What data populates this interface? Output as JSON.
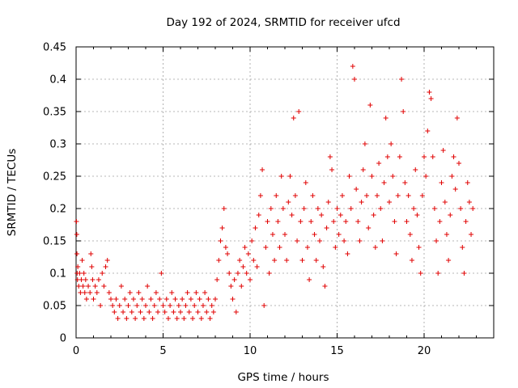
{
  "chart_data": {
    "type": "scatter",
    "title": "Day 192 of 2024, SRMTID for receiver ufcd",
    "xlabel": "GPS time / hours",
    "ylabel": "SRMTID / TECUs",
    "xlim": [
      0,
      24
    ],
    "ylim": [
      0,
      0.45
    ],
    "xticks": [
      0,
      5,
      10,
      15,
      20
    ],
    "yticks": [
      0,
      0.05,
      0.1,
      0.15,
      0.2,
      0.25,
      0.3,
      0.35,
      0.4,
      0.45
    ],
    "grid": true,
    "marker": "+",
    "color": "#e00000",
    "series": [
      {
        "points": [
          [
            0.02,
            0.18
          ],
          [
            0.04,
            0.16
          ],
          [
            0.05,
            0.13
          ],
          [
            0.06,
            0.1
          ],
          [
            0.08,
            0.09
          ],
          [
            0.1,
            0.11
          ],
          [
            0.15,
            0.08
          ],
          [
            0.2,
            0.1
          ],
          [
            0.25,
            0.07
          ],
          [
            0.3,
            0.09
          ],
          [
            0.35,
            0.12
          ],
          [
            0.4,
            0.08
          ],
          [
            0.45,
            0.1
          ],
          [
            0.5,
            0.07
          ],
          [
            0.55,
            0.09
          ],
          [
            0.6,
            0.06
          ],
          [
            0.7,
            0.08
          ],
          [
            0.8,
            0.07
          ],
          [
            0.85,
            0.13
          ],
          [
            0.9,
            0.11
          ],
          [
            0.95,
            0.09
          ],
          [
            1.0,
            0.06
          ],
          [
            1.1,
            0.08
          ],
          [
            1.2,
            0.07
          ],
          [
            1.3,
            0.09
          ],
          [
            1.4,
            0.05
          ],
          [
            1.5,
            0.1
          ],
          [
            1.6,
            0.08
          ],
          [
            1.7,
            0.11
          ],
          [
            1.8,
            0.12
          ],
          [
            1.9,
            0.07
          ],
          [
            2.0,
            0.06
          ],
          [
            2.1,
            0.05
          ],
          [
            2.2,
            0.04
          ],
          [
            2.3,
            0.06
          ],
          [
            2.4,
            0.03
          ],
          [
            2.5,
            0.05
          ],
          [
            2.6,
            0.08
          ],
          [
            2.7,
            0.04
          ],
          [
            2.8,
            0.06
          ],
          [
            2.9,
            0.03
          ],
          [
            3.0,
            0.05
          ],
          [
            3.1,
            0.07
          ],
          [
            3.2,
            0.04
          ],
          [
            3.3,
            0.06
          ],
          [
            3.4,
            0.03
          ],
          [
            3.5,
            0.05
          ],
          [
            3.6,
            0.07
          ],
          [
            3.7,
            0.04
          ],
          [
            3.8,
            0.06
          ],
          [
            3.9,
            0.03
          ],
          [
            4.0,
            0.05
          ],
          [
            4.1,
            0.08
          ],
          [
            4.2,
            0.04
          ],
          [
            4.3,
            0.06
          ],
          [
            4.4,
            0.03
          ],
          [
            4.5,
            0.05
          ],
          [
            4.6,
            0.07
          ],
          [
            4.7,
            0.04
          ],
          [
            4.8,
            0.06
          ],
          [
            4.9,
            0.1
          ],
          [
            5.0,
            0.05
          ],
          [
            5.1,
            0.04
          ],
          [
            5.2,
            0.06
          ],
          [
            5.3,
            0.03
          ],
          [
            5.4,
            0.05
          ],
          [
            5.5,
            0.07
          ],
          [
            5.6,
            0.04
          ],
          [
            5.7,
            0.06
          ],
          [
            5.8,
            0.03
          ],
          [
            5.9,
            0.05
          ],
          [
            6.0,
            0.04
          ],
          [
            6.1,
            0.06
          ],
          [
            6.2,
            0.03
          ],
          [
            6.3,
            0.05
          ],
          [
            6.4,
            0.07
          ],
          [
            6.5,
            0.04
          ],
          [
            6.6,
            0.06
          ],
          [
            6.7,
            0.03
          ],
          [
            6.8,
            0.05
          ],
          [
            6.9,
            0.07
          ],
          [
            7.0,
            0.04
          ],
          [
            7.1,
            0.06
          ],
          [
            7.2,
            0.03
          ],
          [
            7.3,
            0.05
          ],
          [
            7.4,
            0.07
          ],
          [
            7.5,
            0.04
          ],
          [
            7.6,
            0.06
          ],
          [
            7.7,
            0.03
          ],
          [
            7.8,
            0.05
          ],
          [
            7.9,
            0.04
          ],
          [
            8.0,
            0.06
          ],
          [
            8.1,
            0.09
          ],
          [
            8.2,
            0.12
          ],
          [
            8.3,
            0.15
          ],
          [
            8.4,
            0.17
          ],
          [
            8.5,
            0.2
          ],
          [
            8.6,
            0.14
          ],
          [
            8.7,
            0.13
          ],
          [
            8.8,
            0.1
          ],
          [
            8.9,
            0.08
          ],
          [
            9.0,
            0.06
          ],
          [
            9.1,
            0.09
          ],
          [
            9.2,
            0.04
          ],
          [
            9.3,
            0.1
          ],
          [
            9.4,
            0.12
          ],
          [
            9.5,
            0.08
          ],
          [
            9.6,
            0.11
          ],
          [
            9.7,
            0.14
          ],
          [
            9.8,
            0.1
          ],
          [
            9.9,
            0.13
          ],
          [
            10.0,
            0.09
          ],
          [
            10.1,
            0.15
          ],
          [
            10.2,
            0.12
          ],
          [
            10.3,
            0.17
          ],
          [
            10.4,
            0.11
          ],
          [
            10.5,
            0.19
          ],
          [
            10.6,
            0.22
          ],
          [
            10.7,
            0.26
          ],
          [
            10.8,
            0.05
          ],
          [
            10.9,
            0.14
          ],
          [
            11.0,
            0.18
          ],
          [
            11.1,
            0.1
          ],
          [
            11.2,
            0.2
          ],
          [
            11.3,
            0.16
          ],
          [
            11.4,
            0.12
          ],
          [
            11.5,
            0.22
          ],
          [
            11.6,
            0.18
          ],
          [
            11.7,
            0.14
          ],
          [
            11.8,
            0.25
          ],
          [
            11.9,
            0.2
          ],
          [
            12.0,
            0.16
          ],
          [
            12.1,
            0.12
          ],
          [
            12.2,
            0.21
          ],
          [
            12.3,
            0.25
          ],
          [
            12.4,
            0.19
          ],
          [
            12.5,
            0.34
          ],
          [
            12.6,
            0.22
          ],
          [
            12.7,
            0.15
          ],
          [
            12.8,
            0.35
          ],
          [
            12.9,
            0.18
          ],
          [
            13.0,
            0.12
          ],
          [
            13.1,
            0.2
          ],
          [
            13.2,
            0.24
          ],
          [
            13.3,
            0.14
          ],
          [
            13.4,
            0.09
          ],
          [
            13.5,
            0.18
          ],
          [
            13.6,
            0.22
          ],
          [
            13.7,
            0.16
          ],
          [
            13.8,
            0.12
          ],
          [
            13.9,
            0.2
          ],
          [
            14.0,
            0.15
          ],
          [
            14.1,
            0.19
          ],
          [
            14.2,
            0.11
          ],
          [
            14.3,
            0.08
          ],
          [
            14.4,
            0.17
          ],
          [
            14.5,
            0.21
          ],
          [
            14.6,
            0.28
          ],
          [
            14.7,
            0.26
          ],
          [
            14.8,
            0.18
          ],
          [
            14.9,
            0.14
          ],
          [
            15.0,
            0.2
          ],
          [
            15.1,
            0.16
          ],
          [
            15.2,
            0.19
          ],
          [
            15.3,
            0.22
          ],
          [
            15.4,
            0.15
          ],
          [
            15.5,
            0.18
          ],
          [
            15.6,
            0.13
          ],
          [
            15.7,
            0.25
          ],
          [
            15.8,
            0.2
          ],
          [
            15.9,
            0.42
          ],
          [
            16.0,
            0.4
          ],
          [
            16.1,
            0.23
          ],
          [
            16.2,
            0.18
          ],
          [
            16.3,
            0.15
          ],
          [
            16.4,
            0.21
          ],
          [
            16.5,
            0.26
          ],
          [
            16.6,
            0.3
          ],
          [
            16.7,
            0.22
          ],
          [
            16.8,
            0.17
          ],
          [
            16.9,
            0.36
          ],
          [
            17.0,
            0.25
          ],
          [
            17.1,
            0.19
          ],
          [
            17.2,
            0.14
          ],
          [
            17.3,
            0.22
          ],
          [
            17.4,
            0.27
          ],
          [
            17.5,
            0.2
          ],
          [
            17.6,
            0.15
          ],
          [
            17.7,
            0.24
          ],
          [
            17.8,
            0.34
          ],
          [
            17.9,
            0.28
          ],
          [
            18.0,
            0.21
          ],
          [
            18.1,
            0.3
          ],
          [
            18.2,
            0.25
          ],
          [
            18.3,
            0.18
          ],
          [
            18.4,
            0.13
          ],
          [
            18.5,
            0.22
          ],
          [
            18.6,
            0.28
          ],
          [
            18.7,
            0.4
          ],
          [
            18.8,
            0.35
          ],
          [
            18.9,
            0.24
          ],
          [
            19.0,
            0.18
          ],
          [
            19.1,
            0.22
          ],
          [
            19.2,
            0.16
          ],
          [
            19.3,
            0.12
          ],
          [
            19.4,
            0.2
          ],
          [
            19.5,
            0.26
          ],
          [
            19.6,
            0.19
          ],
          [
            19.7,
            0.14
          ],
          [
            19.8,
            0.1
          ],
          [
            19.9,
            0.22
          ],
          [
            20.0,
            0.28
          ],
          [
            20.1,
            0.25
          ],
          [
            20.2,
            0.32
          ],
          [
            20.3,
            0.38
          ],
          [
            20.4,
            0.37
          ],
          [
            20.5,
            0.28
          ],
          [
            20.6,
            0.2
          ],
          [
            20.7,
            0.15
          ],
          [
            20.8,
            0.1
          ],
          [
            20.9,
            0.18
          ],
          [
            21.0,
            0.24
          ],
          [
            21.1,
            0.29
          ],
          [
            21.2,
            0.21
          ],
          [
            21.3,
            0.16
          ],
          [
            21.4,
            0.12
          ],
          [
            21.5,
            0.19
          ],
          [
            21.6,
            0.25
          ],
          [
            21.7,
            0.28
          ],
          [
            21.8,
            0.23
          ],
          [
            21.9,
            0.34
          ],
          [
            22.0,
            0.27
          ],
          [
            22.1,
            0.2
          ],
          [
            22.2,
            0.14
          ],
          [
            22.3,
            0.1
          ],
          [
            22.4,
            0.18
          ],
          [
            22.5,
            0.24
          ],
          [
            22.6,
            0.21
          ],
          [
            22.7,
            0.16
          ],
          [
            22.8,
            0.2
          ]
        ]
      }
    ]
  }
}
